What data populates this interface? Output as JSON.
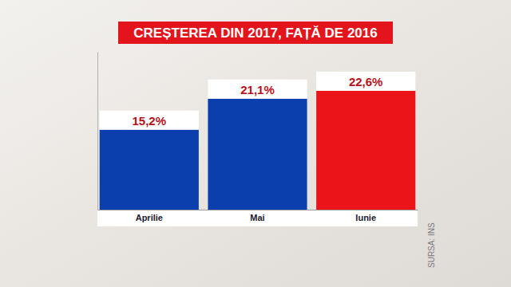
{
  "chart_data": {
    "type": "bar",
    "title": "CREȘTEREA DIN 2017, FAȚĂ DE 2016",
    "categories": [
      "Aprilie",
      "Mai",
      "Iunie"
    ],
    "values": [
      15.2,
      21.1,
      22.6
    ],
    "value_labels": [
      "15,2%",
      "21,1%",
      "22,6%"
    ],
    "colors": [
      "#0b3fae",
      "#0b3fae",
      "#ea1419"
    ],
    "ylim": [
      0,
      30
    ],
    "data_labels": true,
    "tick_labels": "x",
    "grid": false,
    "annotations": [
      "SURSA: INS"
    ]
  }
}
